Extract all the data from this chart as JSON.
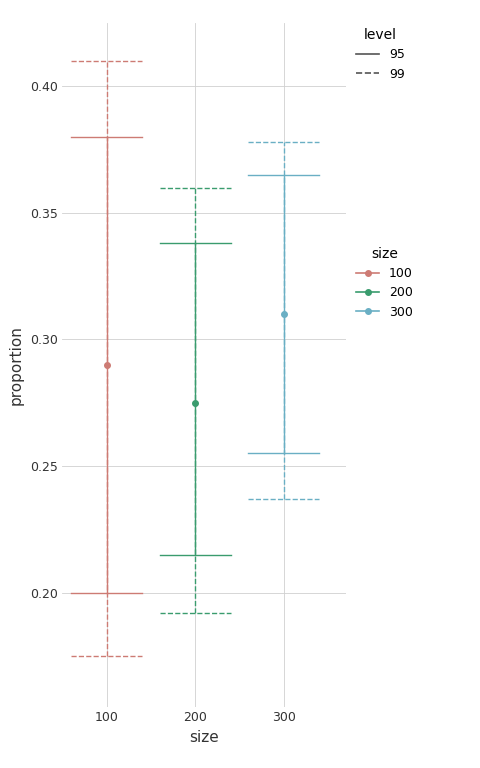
{
  "sizes": [
    100,
    200,
    300
  ],
  "centers": [
    0.29,
    0.275,
    0.31
  ],
  "ci95_low": [
    0.2,
    0.215,
    0.255
  ],
  "ci95_high": [
    0.38,
    0.338,
    0.365
  ],
  "ci99_low": [
    0.175,
    0.192,
    0.237
  ],
  "ci99_high": [
    0.41,
    0.36,
    0.378
  ],
  "colors": [
    "#cd7b74",
    "#3a9c6e",
    "#6aafc4"
  ],
  "xlabel": "size",
  "ylabel": "proportion",
  "xlim": [
    50,
    370
  ],
  "ylim": [
    0.155,
    0.425
  ],
  "yticks": [
    0.2,
    0.25,
    0.3,
    0.35,
    0.4
  ],
  "xticks": [
    100,
    200,
    300
  ],
  "background_color": "#ffffff",
  "grid_color": "#d0d0d0",
  "cap_half_data": 40,
  "legend_level_title": "level",
  "legend_size_title": "size",
  "size_labels": [
    "100",
    "200",
    "300"
  ]
}
